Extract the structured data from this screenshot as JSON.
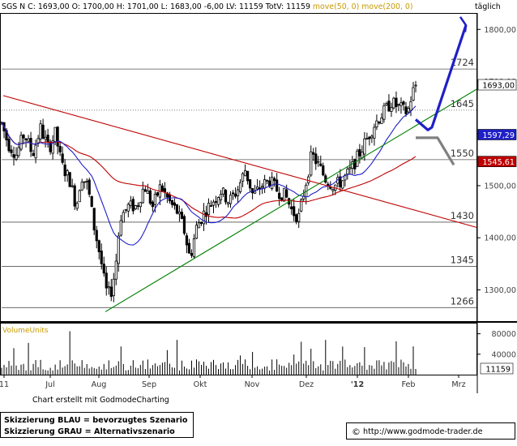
{
  "header": {
    "symbol": "SGS N",
    "quote": "C: 1693,00  O: 1700,00  H: 1701,00  L: 1683,00  -6,00  LV: 11159  TotV: 11159",
    "ma50_label": "move(50, 0)",
    "ma200_label": "move(200, 0)",
    "interval": "täglich"
  },
  "colors": {
    "candles": "#000000",
    "ma50": "#1f1fc8",
    "ma200": "#c00000",
    "trend_red": "#c00000",
    "trend_green": "#008000",
    "scenario_blue": "#1f1fc8",
    "scenario_gray": "#808080",
    "level_lines": "#000000",
    "header_ma": "#c89a00"
  },
  "chart_data": {
    "type": "candlestick",
    "y_axis_ticks": [
      "1800,00",
      "1700,00",
      "1600,00",
      "1500,00",
      "1400,00",
      "1300,00"
    ],
    "ylim": [
      1240,
      1830
    ],
    "x_tick_labels": [
      "11",
      "Jul",
      "Aug",
      "Sep",
      "Okt",
      "Nov",
      "Dez",
      "'12",
      "Feb",
      "Mrz"
    ],
    "levels": [
      {
        "label": "1724",
        "value": 1724
      },
      {
        "label": "1645",
        "value": 1645
      },
      {
        "label": "1550",
        "value": 1550
      },
      {
        "label": "1430",
        "value": 1430
      },
      {
        "label": "1345",
        "value": 1345
      },
      {
        "label": "1266",
        "value": 1266
      }
    ],
    "price_tags": [
      {
        "label": "1693,00",
        "value": 1693,
        "series": "close"
      },
      {
        "label": "1597,29",
        "value": 1597.29,
        "series": "ma50"
      },
      {
        "label": "1545,61",
        "value": 1545.61,
        "series": "ma200"
      }
    ],
    "anchors": [
      {
        "t": 0,
        "v": 1620
      },
      {
        "t": 8,
        "v": 1580
      },
      {
        "t": 18,
        "v": 1560
      },
      {
        "t": 28,
        "v": 1600
      },
      {
        "t": 38,
        "v": 1560
      },
      {
        "t": 48,
        "v": 1610
      },
      {
        "t": 58,
        "v": 1570
      },
      {
        "t": 66,
        "v": 1600
      },
      {
        "t": 74,
        "v": 1540
      },
      {
        "t": 84,
        "v": 1510
      },
      {
        "t": 92,
        "v": 1460
      },
      {
        "t": 98,
        "v": 1520
      },
      {
        "t": 106,
        "v": 1500
      },
      {
        "t": 114,
        "v": 1420
      },
      {
        "t": 122,
        "v": 1360
      },
      {
        "t": 128,
        "v": 1300
      },
      {
        "t": 134,
        "v": 1290
      },
      {
        "t": 140,
        "v": 1340
      },
      {
        "t": 146,
        "v": 1440
      },
      {
        "t": 156,
        "v": 1460
      },
      {
        "t": 166,
        "v": 1460
      },
      {
        "t": 176,
        "v": 1500
      },
      {
        "t": 186,
        "v": 1460
      },
      {
        "t": 196,
        "v": 1500
      },
      {
        "t": 206,
        "v": 1470
      },
      {
        "t": 216,
        "v": 1450
      },
      {
        "t": 224,
        "v": 1420
      },
      {
        "t": 232,
        "v": 1360
      },
      {
        "t": 240,
        "v": 1420
      },
      {
        "t": 250,
        "v": 1450
      },
      {
        "t": 260,
        "v": 1470
      },
      {
        "t": 270,
        "v": 1490
      },
      {
        "t": 280,
        "v": 1470
      },
      {
        "t": 290,
        "v": 1490
      },
      {
        "t": 300,
        "v": 1530
      },
      {
        "t": 310,
        "v": 1480
      },
      {
        "t": 320,
        "v": 1500
      },
      {
        "t": 330,
        "v": 1510
      },
      {
        "t": 340,
        "v": 1490
      },
      {
        "t": 350,
        "v": 1480
      },
      {
        "t": 358,
        "v": 1450
      },
      {
        "t": 366,
        "v": 1440
      },
      {
        "t": 374,
        "v": 1500
      },
      {
        "t": 382,
        "v": 1560
      },
      {
        "t": 390,
        "v": 1540
      },
      {
        "t": 400,
        "v": 1510
      },
      {
        "t": 410,
        "v": 1500
      },
      {
        "t": 420,
        "v": 1510
      },
      {
        "t": 430,
        "v": 1530
      },
      {
        "t": 440,
        "v": 1560
      },
      {
        "t": 450,
        "v": 1590
      },
      {
        "t": 460,
        "v": 1620
      },
      {
        "t": 470,
        "v": 1640
      },
      {
        "t": 480,
        "v": 1660
      },
      {
        "t": 490,
        "v": 1650
      },
      {
        "t": 500,
        "v": 1640
      },
      {
        "t": 506,
        "v": 1680
      },
      {
        "t": 512,
        "v": 1693
      }
    ],
    "volume": {
      "label": "VolumeUnits",
      "ticks": [
        "80000",
        "40000"
      ],
      "ylim": [
        0,
        100000
      ],
      "last_label": "11159",
      "last_value": 11159
    }
  },
  "footer": {
    "credit": "Chart erstellt mit GodmodeCharting",
    "legend_blue": "Skizzierung BLAU = bevorzugtes Szenario",
    "legend_gray": "Skizzierung GRAU = Alternativszenario",
    "url": "http://www.godmode-trader.de"
  }
}
